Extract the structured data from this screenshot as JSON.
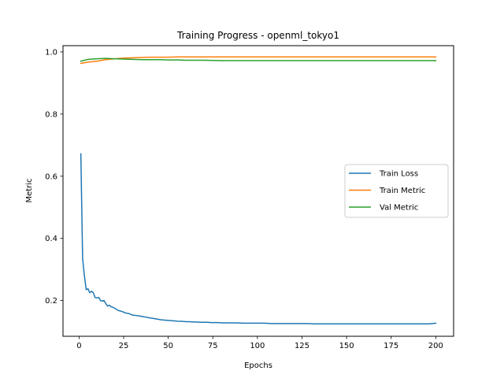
{
  "chart_data": {
    "type": "line",
    "title": "Training Progress - openml_tokyo1",
    "xlabel": "Epochs",
    "ylabel": "Metric",
    "xlim": [
      -9,
      210
    ],
    "ylim": [
      0.085,
      1.02
    ],
    "xticks": [
      0,
      25,
      50,
      75,
      100,
      125,
      150,
      175,
      200
    ],
    "yticks": [
      0.2,
      0.4,
      0.6,
      0.8,
      1.0
    ],
    "ytick_labels": [
      "0.2",
      "0.4",
      "0.6",
      "0.8",
      "1.0"
    ],
    "grid": false,
    "legend_position": "center-right",
    "series": [
      {
        "name": "Train Loss",
        "color": "#1f77b4",
        "x": [
          1,
          2,
          3,
          4,
          5,
          6,
          7,
          8,
          9,
          10,
          11,
          12,
          13,
          14,
          15,
          16,
          17,
          18,
          19,
          20,
          22,
          24,
          26,
          28,
          30,
          32,
          34,
          36,
          38,
          40,
          42,
          44,
          46,
          48,
          50,
          52,
          54,
          56,
          58,
          60,
          62,
          64,
          66,
          68,
          70,
          72,
          74,
          76,
          78,
          80,
          84,
          88,
          92,
          96,
          100,
          104,
          108,
          112,
          116,
          120,
          124,
          128,
          132,
          136,
          140,
          144,
          148,
          152,
          156,
          160,
          164,
          168,
          172,
          176,
          180,
          184,
          188,
          192,
          196,
          200
        ],
        "values": [
          0.672,
          0.335,
          0.28,
          0.235,
          0.238,
          0.225,
          0.23,
          0.225,
          0.21,
          0.208,
          0.21,
          0.2,
          0.198,
          0.2,
          0.19,
          0.182,
          0.185,
          0.18,
          0.178,
          0.175,
          0.168,
          0.165,
          0.16,
          0.158,
          0.153,
          0.152,
          0.15,
          0.148,
          0.146,
          0.144,
          0.142,
          0.14,
          0.138,
          0.137,
          0.136,
          0.135,
          0.134,
          0.133,
          0.133,
          0.132,
          0.132,
          0.131,
          0.131,
          0.13,
          0.13,
          0.13,
          0.129,
          0.129,
          0.129,
          0.128,
          0.128,
          0.128,
          0.127,
          0.127,
          0.127,
          0.127,
          0.126,
          0.126,
          0.126,
          0.126,
          0.126,
          0.126,
          0.125,
          0.125,
          0.125,
          0.125,
          0.125,
          0.125,
          0.125,
          0.125,
          0.125,
          0.125,
          0.125,
          0.125,
          0.125,
          0.125,
          0.125,
          0.125,
          0.125,
          0.127
        ]
      },
      {
        "name": "Train Metric",
        "color": "#ff7f0e",
        "x": [
          1,
          5,
          10,
          15,
          20,
          25,
          30,
          35,
          40,
          45,
          50,
          55,
          60,
          70,
          80,
          90,
          100,
          110,
          120,
          130,
          140,
          150,
          160,
          170,
          180,
          190,
          200
        ],
        "values": [
          0.963,
          0.967,
          0.97,
          0.975,
          0.978,
          0.98,
          0.981,
          0.982,
          0.983,
          0.983,
          0.983,
          0.984,
          0.984,
          0.984,
          0.984,
          0.984,
          0.984,
          0.984,
          0.984,
          0.984,
          0.984,
          0.984,
          0.984,
          0.984,
          0.984,
          0.984,
          0.984
        ]
      },
      {
        "name": "Val Metric",
        "color": "#2ca02c",
        "x": [
          1,
          5,
          10,
          15,
          20,
          25,
          30,
          35,
          40,
          45,
          50,
          55,
          60,
          70,
          80,
          90,
          100,
          110,
          120,
          130,
          140,
          150,
          160,
          170,
          180,
          190,
          200
        ],
        "values": [
          0.97,
          0.976,
          0.978,
          0.979,
          0.978,
          0.977,
          0.976,
          0.975,
          0.975,
          0.975,
          0.974,
          0.974,
          0.973,
          0.973,
          0.972,
          0.972,
          0.972,
          0.972,
          0.972,
          0.972,
          0.972,
          0.972,
          0.972,
          0.972,
          0.972,
          0.972,
          0.972
        ]
      }
    ]
  }
}
